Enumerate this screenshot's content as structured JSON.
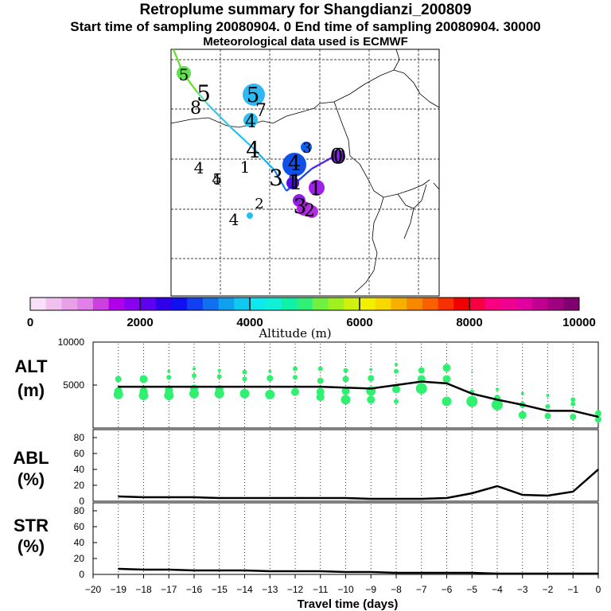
{
  "header": {
    "title": "Retroplume summary for Shangdianzi_200809",
    "sampling": "Start time of sampling 20080904.     0     End time of sampling 20080904. 30000",
    "met": "Meteorological data used is ECMWF"
  },
  "map": {
    "labels": [
      "0",
      "0",
      "1",
      "1",
      "1",
      "1",
      "2",
      "2",
      "3",
      "3",
      "3",
      "4",
      "4",
      "4",
      "4",
      "4",
      "4",
      "5",
      "5",
      "5",
      "5",
      "7",
      "8"
    ]
  },
  "colorbar": {
    "ticks": [
      "0",
      "2000",
      "4000",
      "6000",
      "8000",
      "10000"
    ],
    "label": "Altitude (m)",
    "colors": [
      "#f8e0f8",
      "#f0c0f0",
      "#e8a0e8",
      "#e080e8",
      "#cc40e0",
      "#b000e8",
      "#8800f0",
      "#6000f0",
      "#3000e8",
      "#1010f0",
      "#1040f0",
      "#1070f0",
      "#10a0f0",
      "#10c8f0",
      "#10e8f0",
      "#10f0d8",
      "#10f0a8",
      "#30f078",
      "#70f040",
      "#a0f020",
      "#d0f010",
      "#f0f000",
      "#f8d800",
      "#f8b000",
      "#f88800",
      "#f86000",
      "#f83000",
      "#f00000",
      "#f80040",
      "#f80080",
      "#f00090",
      "#e000a0",
      "#c00090",
      "#a00080",
      "#800070"
    ]
  },
  "chart_data": [
    {
      "type": "line",
      "name": "ALT",
      "label": "ALT",
      "unit": "(m)",
      "x": [
        -19,
        -18,
        -17,
        -16,
        -15,
        -14,
        -13,
        -12,
        -11,
        -10,
        -9,
        -8,
        -7,
        -6,
        -5,
        -4,
        -3,
        -2,
        -1,
        0
      ],
      "values": [
        4800,
        4800,
        4800,
        4800,
        4800,
        4800,
        4800,
        4800,
        4800,
        4700,
        4600,
        5000,
        5400,
        5200,
        4000,
        3300,
        2700,
        2000,
        2000,
        1300
      ],
      "ylim": [
        0,
        10000
      ],
      "yticks": [
        "5000",
        "10000"
      ],
      "ytick_values": [
        5000,
        10000
      ],
      "dots": [
        {
          "x": -19,
          "y": 5700,
          "s": 4
        },
        {
          "x": -19,
          "y": 4300,
          "s": 5
        },
        {
          "x": -19,
          "y": 3900,
          "s": 6
        },
        {
          "x": -18,
          "y": 5700,
          "s": 5
        },
        {
          "x": -18,
          "y": 4300,
          "s": 5
        },
        {
          "x": -18,
          "y": 3800,
          "s": 6
        },
        {
          "x": -17,
          "y": 6600,
          "s": 2
        },
        {
          "x": -17,
          "y": 5900,
          "s": 3
        },
        {
          "x": -17,
          "y": 4400,
          "s": 5
        },
        {
          "x": -17,
          "y": 3800,
          "s": 6
        },
        {
          "x": -16,
          "y": 6900,
          "s": 2
        },
        {
          "x": -16,
          "y": 6100,
          "s": 3
        },
        {
          "x": -16,
          "y": 4600,
          "s": 5
        },
        {
          "x": -16,
          "y": 4000,
          "s": 6
        },
        {
          "x": -15,
          "y": 6700,
          "s": 2
        },
        {
          "x": -15,
          "y": 6000,
          "s": 3
        },
        {
          "x": -15,
          "y": 4500,
          "s": 5
        },
        {
          "x": -15,
          "y": 4000,
          "s": 6
        },
        {
          "x": -14,
          "y": 6500,
          "s": 3
        },
        {
          "x": -14,
          "y": 5700,
          "s": 3
        },
        {
          "x": -14,
          "y": 4000,
          "s": 6
        },
        {
          "x": -13,
          "y": 6600,
          "s": 2
        },
        {
          "x": -13,
          "y": 5800,
          "s": 4
        },
        {
          "x": -13,
          "y": 3900,
          "s": 6
        },
        {
          "x": -12,
          "y": 6900,
          "s": 3
        },
        {
          "x": -12,
          "y": 5900,
          "s": 3
        },
        {
          "x": -12,
          "y": 4200,
          "s": 5
        },
        {
          "x": -11,
          "y": 6900,
          "s": 3
        },
        {
          "x": -11,
          "y": 5500,
          "s": 4
        },
        {
          "x": -11,
          "y": 4200,
          "s": 5
        },
        {
          "x": -11,
          "y": 3600,
          "s": 5
        },
        {
          "x": -10,
          "y": 6700,
          "s": 3
        },
        {
          "x": -10,
          "y": 5700,
          "s": 4
        },
        {
          "x": -10,
          "y": 4300,
          "s": 5
        },
        {
          "x": -10,
          "y": 3300,
          "s": 6
        },
        {
          "x": -9,
          "y": 6800,
          "s": 2
        },
        {
          "x": -9,
          "y": 5800,
          "s": 4
        },
        {
          "x": -9,
          "y": 4300,
          "s": 6
        },
        {
          "x": -9,
          "y": 3300,
          "s": 5
        },
        {
          "x": -8,
          "y": 7400,
          "s": 2
        },
        {
          "x": -8,
          "y": 6600,
          "s": 3
        },
        {
          "x": -8,
          "y": 4500,
          "s": 5
        },
        {
          "x": -8,
          "y": 3100,
          "s": 3
        },
        {
          "x": -7,
          "y": 6700,
          "s": 4
        },
        {
          "x": -7,
          "y": 5700,
          "s": 5
        },
        {
          "x": -7,
          "y": 4600,
          "s": 7
        },
        {
          "x": -6,
          "y": 7000,
          "s": 5
        },
        {
          "x": -6,
          "y": 5700,
          "s": 5
        },
        {
          "x": -6,
          "y": 3100,
          "s": 6
        },
        {
          "x": -5,
          "y": 6600,
          "s": 1
        },
        {
          "x": -5,
          "y": 4200,
          "s": 3
        },
        {
          "x": -5,
          "y": 3100,
          "s": 7
        },
        {
          "x": -4,
          "y": 4500,
          "s": 2
        },
        {
          "x": -4,
          "y": 3500,
          "s": 4
        },
        {
          "x": -4,
          "y": 2700,
          "s": 7
        },
        {
          "x": -3,
          "y": 4000,
          "s": 2
        },
        {
          "x": -3,
          "y": 2700,
          "s": 4
        },
        {
          "x": -3,
          "y": 1500,
          "s": 5
        },
        {
          "x": -2,
          "y": 3800,
          "s": 2
        },
        {
          "x": -2,
          "y": 2500,
          "s": 3
        },
        {
          "x": -2,
          "y": 1400,
          "s": 4
        },
        {
          "x": -1,
          "y": 3300,
          "s": 3
        },
        {
          "x": -1,
          "y": 2800,
          "s": 3
        },
        {
          "x": -1,
          "y": 1300,
          "s": 4
        },
        {
          "x": 0,
          "y": 1700,
          "s": 4
        },
        {
          "x": 0,
          "y": 1000,
          "s": 4
        }
      ]
    },
    {
      "type": "line",
      "name": "ABL",
      "label": "ABL",
      "unit": "(%)",
      "x": [
        -19,
        -18,
        -17,
        -16,
        -15,
        -14,
        -13,
        -12,
        -11,
        -10,
        -9,
        -8,
        -7,
        -6,
        -5,
        -4,
        -3,
        -2,
        -1,
        0
      ],
      "values": [
        6,
        5,
        5,
        5,
        4,
        4,
        4,
        4,
        4,
        4,
        3,
        3,
        3,
        4,
        10,
        19,
        8,
        7,
        12,
        40
      ],
      "ylim": [
        0,
        90
      ],
      "yticks": [
        "0",
        "20",
        "40",
        "60",
        "80"
      ],
      "ytick_values": [
        0,
        20,
        40,
        60,
        80
      ]
    },
    {
      "type": "line",
      "name": "STR",
      "label": "STR",
      "unit": "(%)",
      "x": [
        -19,
        -18,
        -17,
        -16,
        -15,
        -14,
        -13,
        -12,
        -11,
        -10,
        -9,
        -8,
        -7,
        -6,
        -5,
        -4,
        -3,
        -2,
        -1,
        0
      ],
      "values": [
        7,
        6,
        6,
        5,
        5,
        5,
        4,
        4,
        4,
        3,
        3,
        2,
        2,
        2,
        2,
        1,
        1,
        1,
        1,
        1
      ],
      "ylim": [
        0,
        90
      ],
      "yticks": [
        "0",
        "20",
        "40",
        "60",
        "80"
      ],
      "ytick_values": [
        0,
        20,
        40,
        60,
        80
      ]
    }
  ],
  "xaxis": {
    "label": "Travel time (days)",
    "ticks": [
      "−20",
      "−19",
      "−18",
      "−17",
      "−16",
      "−15",
      "−14",
      "−13",
      "−12",
      "−11",
      "−10",
      "−9",
      "−8",
      "−7",
      "−6",
      "−5",
      "−4",
      "−3",
      "−2",
      "−1",
      "0"
    ],
    "tick_values": [
      -20,
      -19,
      -18,
      -17,
      -16,
      -15,
      -14,
      -13,
      -12,
      -11,
      -10,
      -9,
      -8,
      -7,
      -6,
      -5,
      -4,
      -3,
      -2,
      -1,
      0
    ]
  }
}
